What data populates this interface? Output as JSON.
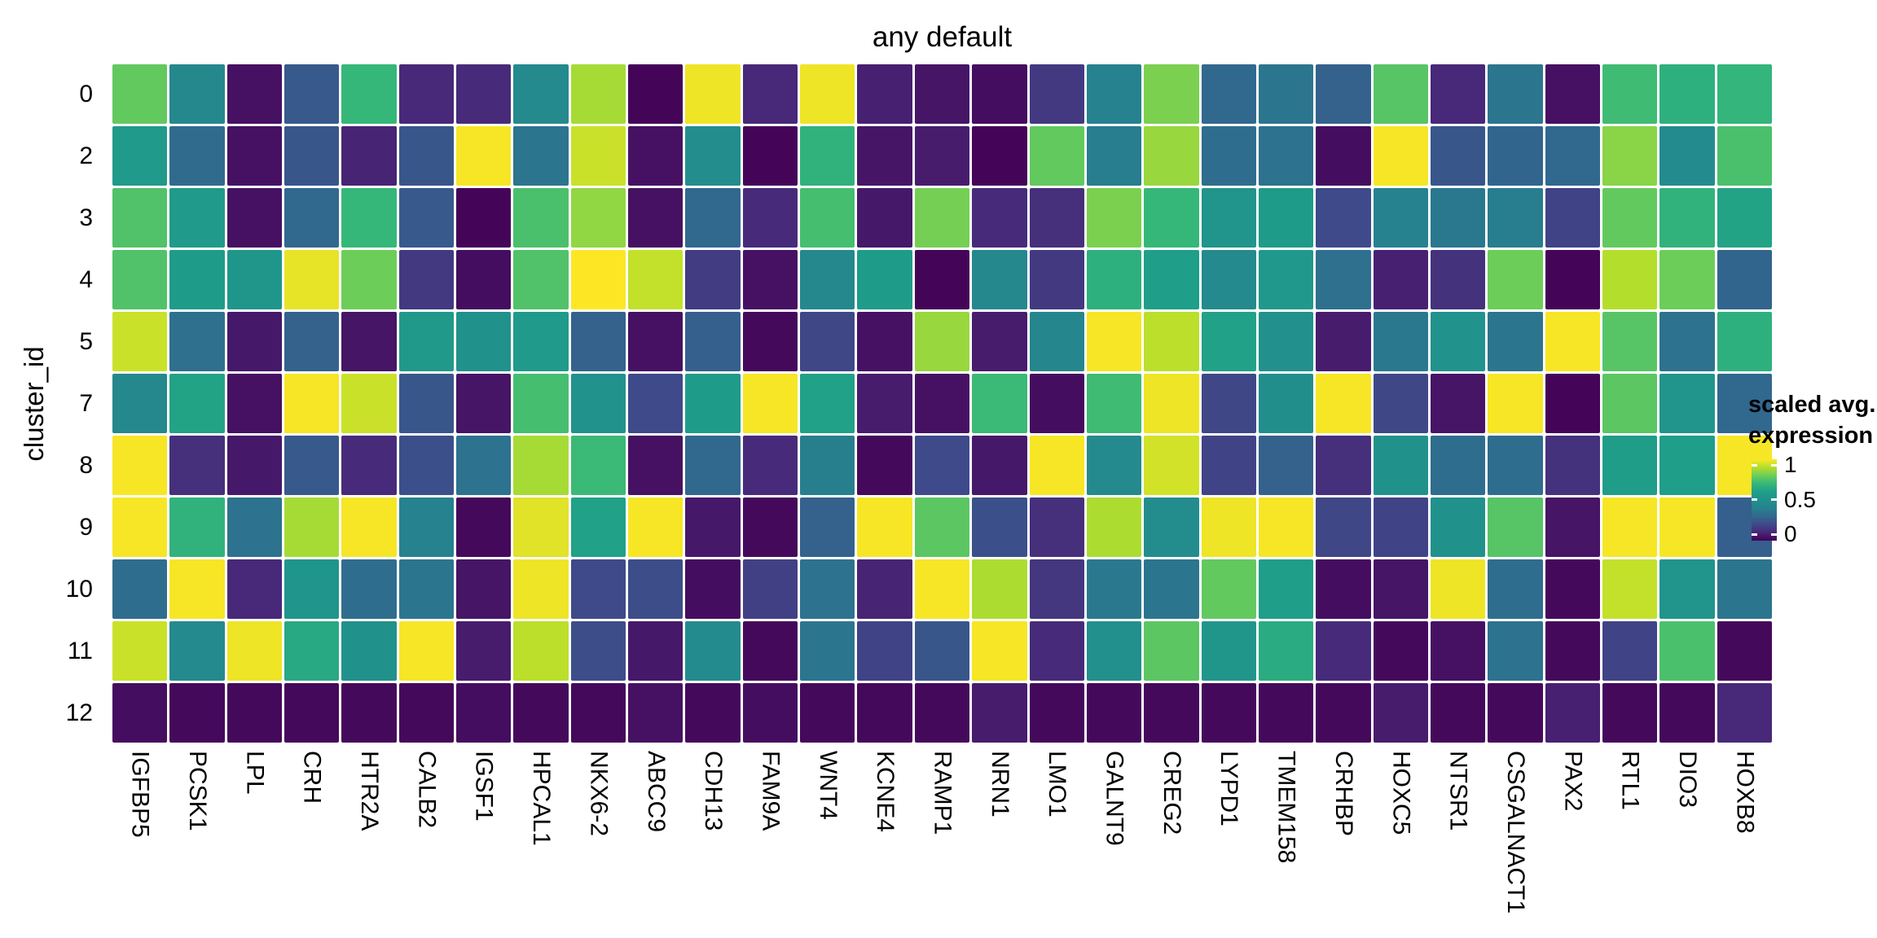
{
  "chart_data": {
    "type": "heatmap",
    "title": "any default",
    "ylabel": "cluster_id",
    "rows": [
      "0",
      "2",
      "3",
      "4",
      "5",
      "7",
      "8",
      "9",
      "10",
      "11",
      "12"
    ],
    "columns": [
      "IGFBP5",
      "PCSK1",
      "LPL",
      "CRH",
      "HTR2A",
      "CALB2",
      "IGSF1",
      "HPCAL1",
      "NKX6-2",
      "ABCC9",
      "CDH13",
      "FAM9A",
      "WNT4",
      "KCNE4",
      "RAMP1",
      "NRN1",
      "LMO1",
      "GALNT9",
      "CREG2",
      "LYPD1",
      "TMEM158",
      "CRHBP",
      "HOXC5",
      "NTSR1",
      "CSGALNACT1",
      "PAX2",
      "RTL1",
      "DIO3",
      "HOXB8"
    ],
    "values": [
      [
        0.78,
        0.44,
        0.04,
        0.25,
        0.7,
        0.1,
        0.11,
        0.45,
        0.88,
        0.01,
        0.98,
        0.1,
        0.98,
        0.08,
        0.05,
        0.03,
        0.15,
        0.4,
        0.82,
        0.3,
        0.35,
        0.28,
        0.76,
        0.1,
        0.35,
        0.04,
        0.72,
        0.67,
        0.69
      ],
      [
        0.57,
        0.31,
        0.04,
        0.24,
        0.09,
        0.24,
        0.99,
        0.35,
        0.93,
        0.04,
        0.47,
        0.01,
        0.68,
        0.05,
        0.07,
        0.01,
        0.78,
        0.38,
        0.86,
        0.32,
        0.34,
        0.03,
        0.99,
        0.24,
        0.29,
        0.3,
        0.84,
        0.46,
        0.74
      ],
      [
        0.75,
        0.57,
        0.04,
        0.3,
        0.7,
        0.25,
        0.01,
        0.74,
        0.85,
        0.04,
        0.3,
        0.11,
        0.73,
        0.06,
        0.81,
        0.11,
        0.12,
        0.82,
        0.7,
        0.52,
        0.58,
        0.2,
        0.4,
        0.36,
        0.38,
        0.18,
        0.78,
        0.68,
        0.62
      ],
      [
        0.75,
        0.58,
        0.54,
        0.97,
        0.8,
        0.15,
        0.03,
        0.75,
        1.0,
        0.92,
        0.16,
        0.04,
        0.44,
        0.58,
        0.01,
        0.44,
        0.15,
        0.67,
        0.6,
        0.45,
        0.55,
        0.33,
        0.08,
        0.13,
        0.8,
        0.01,
        0.9,
        0.8,
        0.29
      ],
      [
        0.93,
        0.33,
        0.06,
        0.28,
        0.05,
        0.56,
        0.5,
        0.57,
        0.28,
        0.04,
        0.27,
        0.02,
        0.19,
        0.04,
        0.86,
        0.07,
        0.43,
        0.99,
        0.91,
        0.61,
        0.49,
        0.07,
        0.36,
        0.51,
        0.35,
        0.99,
        0.76,
        0.34,
        0.67
      ],
      [
        0.44,
        0.62,
        0.04,
        0.99,
        0.93,
        0.24,
        0.05,
        0.73,
        0.51,
        0.2,
        0.58,
        0.99,
        0.61,
        0.07,
        0.04,
        0.71,
        0.03,
        0.72,
        0.98,
        0.19,
        0.48,
        0.99,
        0.19,
        0.05,
        0.99,
        0.01,
        0.77,
        0.52,
        0.3
      ],
      [
        0.99,
        0.12,
        0.06,
        0.25,
        0.11,
        0.22,
        0.34,
        0.88,
        0.71,
        0.04,
        0.3,
        0.11,
        0.39,
        0.02,
        0.2,
        0.06,
        0.99,
        0.45,
        0.94,
        0.18,
        0.28,
        0.12,
        0.5,
        0.32,
        0.32,
        0.13,
        0.59,
        0.6,
        0.99
      ],
      [
        0.99,
        0.68,
        0.34,
        0.88,
        0.99,
        0.4,
        0.02,
        0.96,
        0.61,
        0.99,
        0.06,
        0.02,
        0.28,
        0.99,
        0.77,
        0.22,
        0.12,
        0.89,
        0.47,
        0.98,
        0.99,
        0.19,
        0.18,
        0.5,
        0.76,
        0.05,
        0.99,
        0.99,
        0.27
      ],
      [
        0.32,
        0.99,
        0.1,
        0.53,
        0.32,
        0.35,
        0.05,
        0.98,
        0.2,
        0.21,
        0.03,
        0.17,
        0.34,
        0.09,
        0.99,
        0.89,
        0.14,
        0.36,
        0.35,
        0.78,
        0.6,
        0.03,
        0.05,
        0.98,
        0.32,
        0.02,
        0.92,
        0.52,
        0.35
      ],
      [
        0.93,
        0.45,
        0.98,
        0.64,
        0.5,
        0.99,
        0.07,
        0.91,
        0.21,
        0.06,
        0.46,
        0.02,
        0.35,
        0.18,
        0.24,
        0.99,
        0.11,
        0.49,
        0.77,
        0.54,
        0.65,
        0.11,
        0.02,
        0.04,
        0.34,
        0.02,
        0.18,
        0.74,
        0.02
      ],
      [
        0.03,
        0.02,
        0.02,
        0.02,
        0.02,
        0.02,
        0.03,
        0.02,
        0.02,
        0.04,
        0.02,
        0.03,
        0.02,
        0.02,
        0.02,
        0.07,
        0.02,
        0.02,
        0.02,
        0.02,
        0.02,
        0.02,
        0.07,
        0.02,
        0.02,
        0.08,
        0.02,
        0.02,
        0.1
      ]
    ],
    "zlim": [
      0,
      1
    ],
    "grid": false,
    "legend": {
      "position": "right",
      "title_lines": [
        "scaled avg.",
        "expression"
      ],
      "ticks": [
        {
          "label": "1",
          "value": 1
        },
        {
          "label": "0.5",
          "value": 0.5
        },
        {
          "label": "0",
          "value": 0
        }
      ]
    },
    "colormap": "viridis",
    "colormap_stops": [
      "#440154",
      "#482878",
      "#3E4A89",
      "#31688E",
      "#26828E",
      "#21918C",
      "#1F9E89",
      "#35B779",
      "#6DCD59",
      "#B4DE2C",
      "#FDE725"
    ]
  },
  "style": {
    "background": "#FFFFFF",
    "text_color": "#000000",
    "tile_gap_color": "#FFFFFF"
  }
}
